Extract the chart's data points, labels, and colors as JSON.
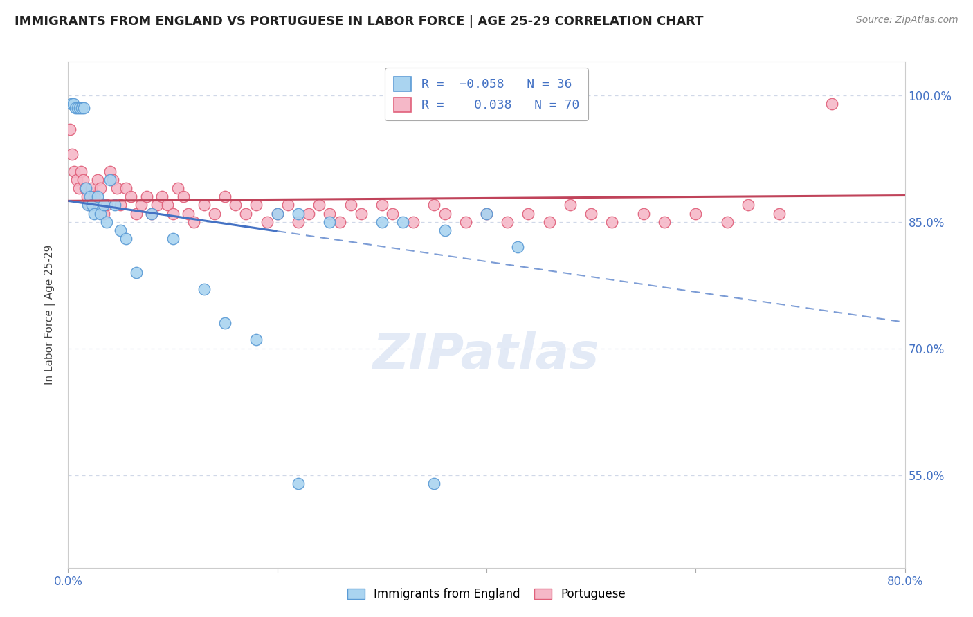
{
  "title": "IMMIGRANTS FROM ENGLAND VS PORTUGUESE IN LABOR FORCE | AGE 25-29 CORRELATION CHART",
  "source": "Source: ZipAtlas.com",
  "ylabel": "In Labor Force | Age 25-29",
  "xlim": [
    0.0,
    80.0
  ],
  "ylim": [
    0.44,
    1.04
  ],
  "england_R": -0.058,
  "england_N": 36,
  "portuguese_R": 0.038,
  "portuguese_N": 70,
  "england_color": "#aad4f0",
  "england_edge_color": "#5b9bd5",
  "portuguese_color": "#f5b8c8",
  "portuguese_edge_color": "#e0607a",
  "england_line_color": "#4472c4",
  "portuguese_line_color": "#c0435a",
  "watermark_color": "#ccd9f0",
  "grid_color": "#d0d8e8",
  "tick_color": "#4472c4",
  "title_color": "#222222",
  "source_color": "#888888",
  "ylabel_color": "#444444",
  "eng_x": [
    0.3,
    0.5,
    0.7,
    0.9,
    1.1,
    1.3,
    1.5,
    1.7,
    1.9,
    2.1,
    2.3,
    2.5,
    2.8,
    3.1,
    3.4,
    3.7,
    4.0,
    4.5,
    5.0,
    5.5,
    6.5,
    8.0,
    10.0,
    13.0,
    15.0,
    18.0,
    20.0,
    22.0,
    25.0,
    30.0,
    32.0,
    36.0,
    40.0,
    43.0,
    22.0,
    35.0
  ],
  "eng_y": [
    0.99,
    0.99,
    0.985,
    0.985,
    0.985,
    0.985,
    0.985,
    0.89,
    0.87,
    0.88,
    0.87,
    0.86,
    0.88,
    0.86,
    0.87,
    0.85,
    0.9,
    0.87,
    0.84,
    0.83,
    0.79,
    0.86,
    0.83,
    0.77,
    0.73,
    0.71,
    0.86,
    0.86,
    0.85,
    0.85,
    0.85,
    0.84,
    0.86,
    0.82,
    0.54,
    0.54
  ],
  "por_x": [
    0.2,
    0.4,
    0.6,
    0.8,
    1.0,
    1.2,
    1.4,
    1.6,
    1.8,
    2.0,
    2.2,
    2.5,
    2.8,
    3.1,
    3.4,
    3.7,
    4.0,
    4.3,
    4.7,
    5.0,
    5.5,
    6.0,
    6.5,
    7.0,
    7.5,
    8.0,
    8.5,
    9.0,
    9.5,
    10.0,
    10.5,
    11.0,
    11.5,
    12.0,
    13.0,
    14.0,
    15.0,
    16.0,
    17.0,
    18.0,
    19.0,
    20.0,
    21.0,
    22.0,
    23.0,
    24.0,
    25.0,
    26.0,
    27.0,
    28.0,
    30.0,
    31.0,
    33.0,
    35.0,
    36.0,
    38.0,
    40.0,
    42.0,
    44.0,
    46.0,
    48.0,
    50.0,
    52.0,
    55.0,
    57.0,
    60.0,
    63.0,
    65.0,
    68.0,
    73.0
  ],
  "por_y": [
    0.96,
    0.93,
    0.91,
    0.9,
    0.89,
    0.91,
    0.9,
    0.89,
    0.88,
    0.87,
    0.89,
    0.88,
    0.9,
    0.89,
    0.86,
    0.87,
    0.91,
    0.9,
    0.89,
    0.87,
    0.89,
    0.88,
    0.86,
    0.87,
    0.88,
    0.86,
    0.87,
    0.88,
    0.87,
    0.86,
    0.89,
    0.88,
    0.86,
    0.85,
    0.87,
    0.86,
    0.88,
    0.87,
    0.86,
    0.87,
    0.85,
    0.86,
    0.87,
    0.85,
    0.86,
    0.87,
    0.86,
    0.85,
    0.87,
    0.86,
    0.87,
    0.86,
    0.85,
    0.87,
    0.86,
    0.85,
    0.86,
    0.85,
    0.86,
    0.85,
    0.87,
    0.86,
    0.85,
    0.86,
    0.85,
    0.86,
    0.85,
    0.87,
    0.86,
    0.99
  ],
  "eng_trend_x0": 0.0,
  "eng_trend_x_solid_end": 20.0,
  "eng_trend_x_dash_end": 80.0,
  "eng_trend_y0": 0.875,
  "eng_trend_slope": -0.0018,
  "por_trend_y0": 0.875,
  "por_trend_slope": 8e-05
}
